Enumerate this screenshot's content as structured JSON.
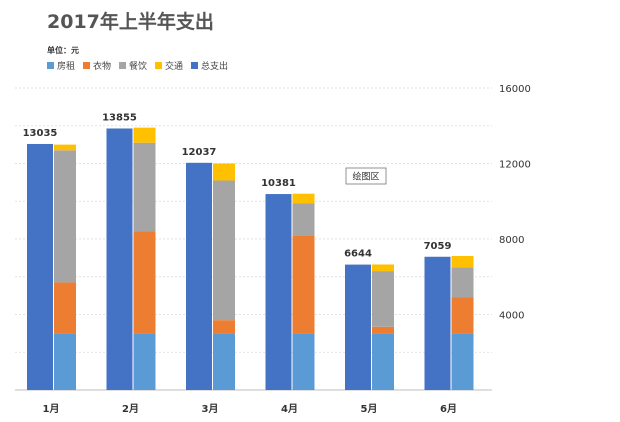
{
  "chart_data": {
    "type": "bar",
    "title": "2017年上半年支出",
    "unit_label": "单位：元",
    "categories": [
      "1月",
      "2月",
      "3月",
      "4月",
      "5月",
      "6月"
    ],
    "ylim": [
      0,
      16000
    ],
    "yticks": [
      4000,
      8000,
      12000,
      16000
    ],
    "y_axis_position": "right",
    "grid": true,
    "legend_position": "top-left",
    "tooltip": "绘图区",
    "series": [
      {
        "name": "房租",
        "stack": "detail",
        "color": "#5B9BD5",
        "values": [
          3000,
          3000,
          3000,
          3000,
          3000,
          3000
        ]
      },
      {
        "name": "衣物",
        "stack": "detail",
        "color": "#ED7D31",
        "values": [
          2700,
          5400,
          700,
          5200,
          350,
          1900
        ]
      },
      {
        "name": "餐饮",
        "stack": "detail",
        "color": "#A5A5A5",
        "values": [
          7000,
          4700,
          7400,
          1700,
          2950,
          1600
        ]
      },
      {
        "name": "交通",
        "stack": "detail",
        "color": "#FFC000",
        "values": [
          300,
          800,
          900,
          500,
          350,
          600
        ]
      },
      {
        "name": "总支出",
        "stack": "total",
        "color": "#4472C4",
        "values": [
          13035,
          13855,
          12037,
          10381,
          6644,
          7059
        ],
        "show_labels": true
      }
    ]
  }
}
